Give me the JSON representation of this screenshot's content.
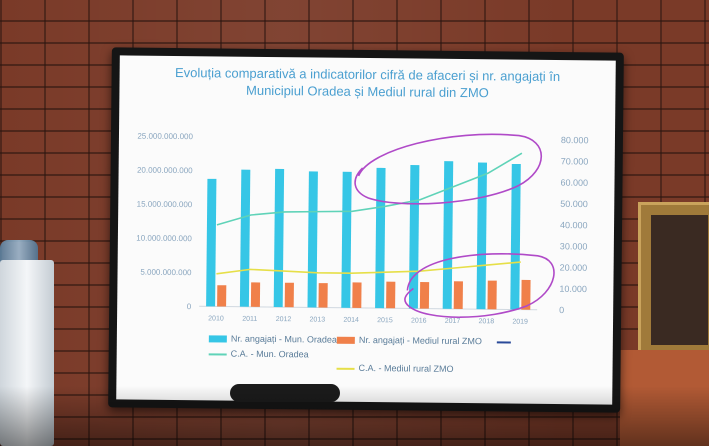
{
  "chart_data": {
    "type": "bar",
    "title_line1": "Evoluția comparativă a indicatorilor cifră de afaceri și nr. angajați în",
    "title_line2": "Municipiul Oradea și Mediul rural din ZMO",
    "categories": [
      "2010",
      "2011",
      "2012",
      "2013",
      "2014",
      "2015",
      "2016",
      "2017",
      "2018",
      "2019"
    ],
    "left_axis": {
      "min": 0,
      "max": 25000000000,
      "ticks": [
        "0",
        "5.000.000.000",
        "10.000.000.000",
        "15.000.000.000",
        "20.000.000.000",
        "25.000.000.000"
      ]
    },
    "right_axis": {
      "min": 0,
      "max": 80000,
      "ticks": [
        "0",
        "10.000",
        "20.000",
        "30.000",
        "40.000",
        "50.000",
        "60.000",
        "70.000",
        "80.000"
      ]
    },
    "series": [
      {
        "name": "Nr. angajați - Mun. Oradea",
        "kind": "bar",
        "axis": "right",
        "color": "#36c6e6",
        "values": [
          60000,
          64500,
          65000,
          64000,
          64000,
          66000,
          67500,
          69500,
          69000,
          68500
        ]
      },
      {
        "name": "Nr. angajați - Mediul rural ZMO",
        "kind": "bar",
        "axis": "right",
        "color": "#f0804a",
        "values": [
          10000,
          11500,
          11500,
          11500,
          12000,
          12500,
          12500,
          13000,
          13500,
          14000
        ]
      },
      {
        "name": "C.A. - Mun. Oradea",
        "kind": "line",
        "axis": "left",
        "color": "#5fd3b8",
        "values": [
          12000000000,
          13500000000,
          14000000000,
          14100000000,
          14200000000,
          15000000000,
          16000000000,
          18000000000,
          20000000000,
          23000000000
        ]
      },
      {
        "name": "C.A. - Mediul rural ZMO",
        "kind": "line",
        "axis": "left",
        "color": "#e6df48",
        "values": [
          4800000000,
          5500000000,
          5300000000,
          5100000000,
          5100000000,
          5300000000,
          5500000000,
          6000000000,
          6500000000,
          7000000000
        ]
      }
    ],
    "legend_extra_label": "",
    "annotations": "purple hand-drawn ellipses around 2015–2019",
    "annotation_color": "#b04ac8"
  }
}
